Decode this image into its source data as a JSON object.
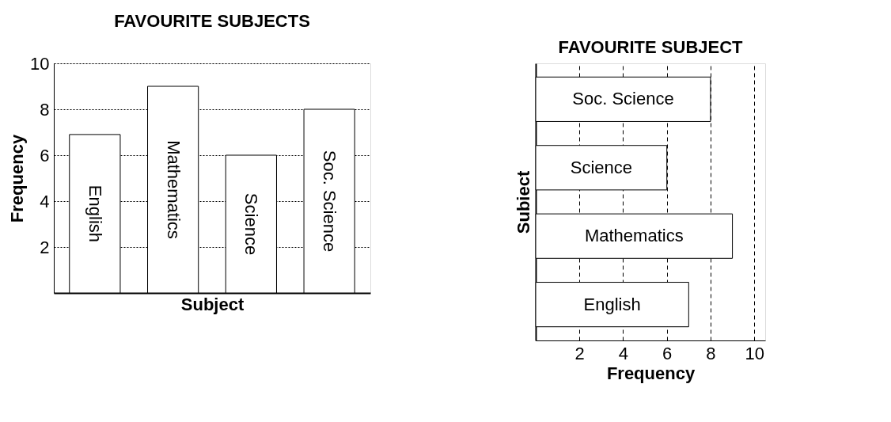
{
  "chart_data": [
    {
      "type": "bar",
      "title": "FAVOURITE SUBJECTS",
      "xlabel": "Subject",
      "ylabel": "Frequency",
      "categories": [
        "English",
        "Mathematics",
        "Science",
        "Soc. Science"
      ],
      "values": [
        6.9,
        9,
        6,
        8
      ],
      "color": "#ffffff",
      "ylim": [
        0,
        10
      ],
      "yticks": [
        2,
        4,
        6,
        8,
        10
      ],
      "grid": "y",
      "tick_labels": "y"
    },
    {
      "type": "bar",
      "orientation": "horizontal",
      "title": "FAVOURITE SUBJECT",
      "xlabel": "Frequency",
      "ylabel": "Subiect",
      "categories": [
        "Soc. Science",
        "Science",
        "Mathematics",
        "English"
      ],
      "values": [
        8,
        6,
        9,
        7
      ],
      "color": "#ffffff",
      "xlim": [
        0,
        10.5
      ],
      "xticks": [
        2,
        4,
        6,
        8,
        10
      ],
      "grid": "x",
      "tick_labels": "x"
    }
  ]
}
